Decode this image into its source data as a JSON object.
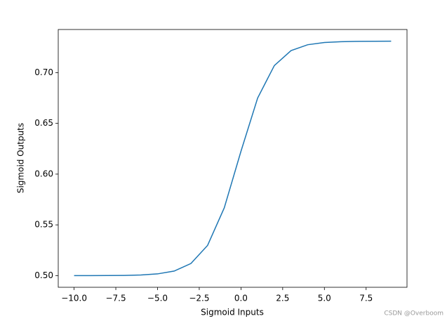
{
  "chart_data": {
    "type": "line",
    "x_label": "Sigmoid Inputs",
    "y_label": "Sigmoid Outputs",
    "watermark": "CSDN @Overboom",
    "x": [
      -10,
      -9,
      -8,
      -7,
      -6,
      -5,
      -4,
      -3,
      -2,
      -1,
      0,
      1,
      2,
      3,
      4,
      5,
      6,
      7,
      8,
      9
    ],
    "series": [
      {
        "color": "#1f77b4",
        "values": [
          0.5,
          0.5,
          0.5001,
          0.5002,
          0.5006,
          0.5017,
          0.5045,
          0.5119,
          0.5298,
          0.5668,
          0.6225,
          0.675,
          0.707,
          0.7217,
          0.7275,
          0.7297,
          0.7305,
          0.7308,
          0.7309,
          0.731
        ]
      }
    ],
    "xlim": [
      -10.95,
      9.95
    ],
    "ylim": [
      0.4885,
      0.7425
    ],
    "xticks": [
      {
        "value": -10,
        "label": "−10.0"
      },
      {
        "value": -7.5,
        "label": "−7.5"
      },
      {
        "value": -5,
        "label": "−5.0"
      },
      {
        "value": -2.5,
        "label": "−2.5"
      },
      {
        "value": 0,
        "label": "0.0"
      },
      {
        "value": 2.5,
        "label": "2.5"
      },
      {
        "value": 5,
        "label": "5.0"
      },
      {
        "value": 7.5,
        "label": "7.5"
      }
    ],
    "yticks": [
      {
        "value": 0.5,
        "label": "0.50"
      },
      {
        "value": 0.55,
        "label": "0.55"
      },
      {
        "value": 0.6,
        "label": "0.60"
      },
      {
        "value": 0.65,
        "label": "0.65"
      },
      {
        "value": 0.7,
        "label": "0.70"
      }
    ]
  }
}
